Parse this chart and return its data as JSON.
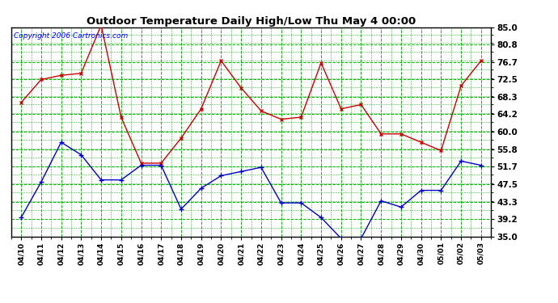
{
  "title": "Outdoor Temperature Daily High/Low Thu May 4 00:00",
  "copyright": "Copyright 2006 Cartronics.com",
  "dates": [
    "04/10",
    "04/11",
    "04/12",
    "04/13",
    "04/14",
    "04/15",
    "04/16",
    "04/17",
    "04/18",
    "04/19",
    "04/20",
    "04/21",
    "04/22",
    "04/23",
    "04/24",
    "04/25",
    "04/26",
    "04/27",
    "04/28",
    "04/29",
    "04/30",
    "05/01",
    "05/02",
    "05/03"
  ],
  "high": [
    67.0,
    72.5,
    73.5,
    74.0,
    85.5,
    63.5,
    52.5,
    52.5,
    58.5,
    65.5,
    77.0,
    70.5,
    65.0,
    63.0,
    63.5,
    76.5,
    65.5,
    66.5,
    59.5,
    59.5,
    57.5,
    55.5,
    71.0,
    77.0
  ],
  "low": [
    39.5,
    48.0,
    57.5,
    54.5,
    48.5,
    48.5,
    52.0,
    52.0,
    41.5,
    46.5,
    49.5,
    50.5,
    51.5,
    43.0,
    43.0,
    39.5,
    34.5,
    34.5,
    43.5,
    42.0,
    46.0,
    46.0,
    53.0,
    52.0
  ],
  "high_color": "#cc0000",
  "low_color": "#0000cc",
  "bg_color": "#ffffff",
  "plot_bg": "#ffffff",
  "grid_color": "#00bb00",
  "grid_color_minor": "#009900",
  "ymin": 35.0,
  "ymax": 85.0,
  "yticks": [
    35.0,
    39.2,
    43.3,
    47.5,
    51.7,
    55.8,
    60.0,
    64.2,
    68.3,
    72.5,
    76.7,
    80.8,
    85.0
  ]
}
